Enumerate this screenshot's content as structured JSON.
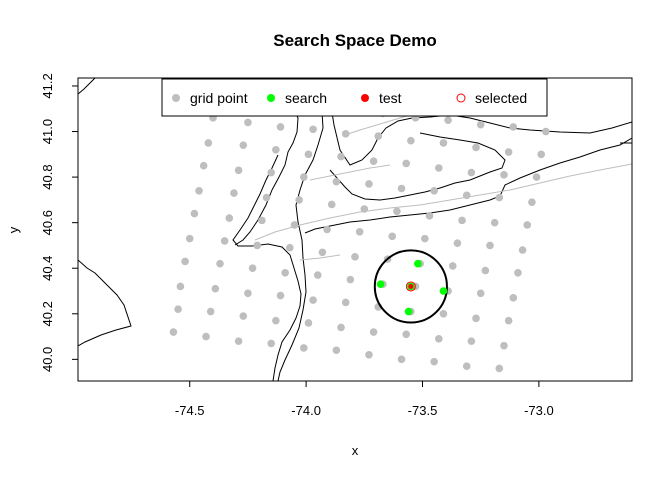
{
  "chart_data": {
    "type": "scatter",
    "title": "Search Space Demo",
    "xlabel": "x",
    "ylabel": "y",
    "xlim": [
      -74.98,
      -72.6
    ],
    "ylim": [
      39.905,
      41.235
    ],
    "xticks": [
      -74.5,
      -74.0,
      -73.5,
      -73.0
    ],
    "xtick_labels": [
      "-74.5",
      "-74.0",
      "-73.5",
      "-73.0"
    ],
    "yticks": [
      40.0,
      40.2,
      40.4,
      40.6,
      40.8,
      41.0,
      41.2
    ],
    "ytick_labels": [
      "40.0",
      "40.2",
      "40.4",
      "40.6",
      "40.8",
      "41.0",
      "41.2"
    ],
    "grid": false,
    "legend_position": "top",
    "legend": [
      {
        "label": "grid point",
        "marker": "filled-circle",
        "color": "#bebebe"
      },
      {
        "label": "search",
        "marker": "filled-circle",
        "color": "#00ff00"
      },
      {
        "label": "test",
        "marker": "filled-circle",
        "color": "#ff0000"
      },
      {
        "label": "selected",
        "marker": "open-circle",
        "color": "#ff0000"
      }
    ],
    "colors": {
      "grid": "#bebebe",
      "search": "#00ff00",
      "test": "#ff0000",
      "selected": "#ff0000",
      "outline": "#000000",
      "roads": "#bebebe"
    },
    "series": [
      {
        "name": "grid point",
        "points": [
          [
            -74.57,
            40.12
          ],
          [
            -74.55,
            40.22
          ],
          [
            -74.54,
            40.32
          ],
          [
            -74.52,
            40.43
          ],
          [
            -74.5,
            40.53
          ],
          [
            -74.48,
            40.64
          ],
          [
            -74.46,
            40.74
          ],
          [
            -74.44,
            40.85
          ],
          [
            -74.42,
            40.95
          ],
          [
            -74.4,
            41.06
          ],
          [
            -74.38,
            41.16
          ],
          [
            -74.43,
            40.1
          ],
          [
            -74.41,
            40.21
          ],
          [
            -74.39,
            40.31
          ],
          [
            -74.37,
            40.42
          ],
          [
            -74.35,
            40.52
          ],
          [
            -74.33,
            40.62
          ],
          [
            -74.31,
            40.73
          ],
          [
            -74.29,
            40.83
          ],
          [
            -74.27,
            40.94
          ],
          [
            -74.25,
            41.04
          ],
          [
            -74.23,
            41.14
          ],
          [
            -74.29,
            40.08
          ],
          [
            -74.27,
            40.19
          ],
          [
            -74.25,
            40.29
          ],
          [
            -74.23,
            40.4
          ],
          [
            -74.21,
            40.5
          ],
          [
            -74.19,
            40.61
          ],
          [
            -74.17,
            40.71
          ],
          [
            -74.15,
            40.82
          ],
          [
            -74.13,
            40.92
          ],
          [
            -74.11,
            41.02
          ],
          [
            -74.09,
            41.13
          ],
          [
            -74.15,
            40.07
          ],
          [
            -74.13,
            40.17
          ],
          [
            -74.11,
            40.28
          ],
          [
            -74.09,
            40.38
          ],
          [
            -74.07,
            40.49
          ],
          [
            -74.05,
            40.59
          ],
          [
            -74.03,
            40.7
          ],
          [
            -74.01,
            40.8
          ],
          [
            -73.99,
            40.9
          ],
          [
            -73.97,
            41.01
          ],
          [
            -73.95,
            41.11
          ],
          [
            -74.01,
            40.05
          ],
          [
            -73.99,
            40.16
          ],
          [
            -73.97,
            40.26
          ],
          [
            -73.95,
            40.37
          ],
          [
            -73.93,
            40.47
          ],
          [
            -73.91,
            40.57
          ],
          [
            -73.89,
            40.68
          ],
          [
            -73.87,
            40.78
          ],
          [
            -73.85,
            40.89
          ],
          [
            -73.83,
            40.99
          ],
          [
            -73.81,
            41.1
          ],
          [
            -73.87,
            40.04
          ],
          [
            -73.85,
            40.14
          ],
          [
            -73.83,
            40.25
          ],
          [
            -73.81,
            40.35
          ],
          [
            -73.79,
            40.45
          ],
          [
            -73.77,
            40.56
          ],
          [
            -73.75,
            40.66
          ],
          [
            -73.73,
            40.77
          ],
          [
            -73.71,
            40.87
          ],
          [
            -73.69,
            40.98
          ],
          [
            -73.67,
            41.08
          ],
          [
            -73.73,
            40.02
          ],
          [
            -73.71,
            40.12
          ],
          [
            -73.69,
            40.23
          ],
          [
            -73.67,
            40.33
          ],
          [
            -73.65,
            40.44
          ],
          [
            -73.63,
            40.54
          ],
          [
            -73.61,
            40.65
          ],
          [
            -73.59,
            40.75
          ],
          [
            -73.57,
            40.86
          ],
          [
            -73.55,
            40.96
          ],
          [
            -73.53,
            41.06
          ],
          [
            -73.59,
            40.0
          ],
          [
            -73.57,
            40.11
          ],
          [
            -73.55,
            40.21
          ],
          [
            -73.53,
            40.32
          ],
          [
            -73.51,
            40.42
          ],
          [
            -73.49,
            40.53
          ],
          [
            -73.47,
            40.63
          ],
          [
            -73.45,
            40.74
          ],
          [
            -73.43,
            40.84
          ],
          [
            -73.41,
            40.95
          ],
          [
            -73.39,
            41.05
          ],
          [
            -73.45,
            39.99
          ],
          [
            -73.43,
            40.09
          ],
          [
            -73.41,
            40.2
          ],
          [
            -73.39,
            40.3
          ],
          [
            -73.37,
            40.41
          ],
          [
            -73.35,
            40.51
          ],
          [
            -73.33,
            40.61
          ],
          [
            -73.31,
            40.72
          ],
          [
            -73.29,
            40.82
          ],
          [
            -73.27,
            40.93
          ],
          [
            -73.25,
            41.03
          ],
          [
            -73.31,
            39.97
          ],
          [
            -73.29,
            40.08
          ],
          [
            -73.27,
            40.18
          ],
          [
            -73.25,
            40.29
          ],
          [
            -73.23,
            40.39
          ],
          [
            -73.21,
            40.5
          ],
          [
            -73.19,
            40.6
          ],
          [
            -73.17,
            40.71
          ],
          [
            -73.15,
            40.81
          ],
          [
            -73.13,
            40.91
          ],
          [
            -73.11,
            41.02
          ],
          [
            -73.17,
            39.96
          ],
          [
            -73.15,
            40.06
          ],
          [
            -73.13,
            40.17
          ],
          [
            -73.11,
            40.27
          ],
          [
            -73.09,
            40.38
          ],
          [
            -73.07,
            40.48
          ],
          [
            -73.05,
            40.59
          ],
          [
            -73.03,
            40.69
          ],
          [
            -73.01,
            40.8
          ],
          [
            -72.99,
            40.9
          ],
          [
            -72.97,
            41.0
          ]
        ]
      },
      {
        "name": "search",
        "points": [
          [
            -73.52,
            40.42
          ],
          [
            -73.68,
            40.33
          ],
          [
            -73.41,
            40.3
          ],
          [
            -73.56,
            40.21
          ],
          [
            -73.55,
            40.32
          ]
        ]
      },
      {
        "name": "test",
        "points": [
          [
            -73.55,
            40.32
          ]
        ]
      },
      {
        "name": "selected",
        "points": [
          [
            -73.55,
            40.32
          ]
        ]
      }
    ],
    "annotations": [
      {
        "type": "circle",
        "center": [
          -73.55,
          40.32
        ],
        "radius": 0.155,
        "color": "#000000"
      }
    ]
  }
}
